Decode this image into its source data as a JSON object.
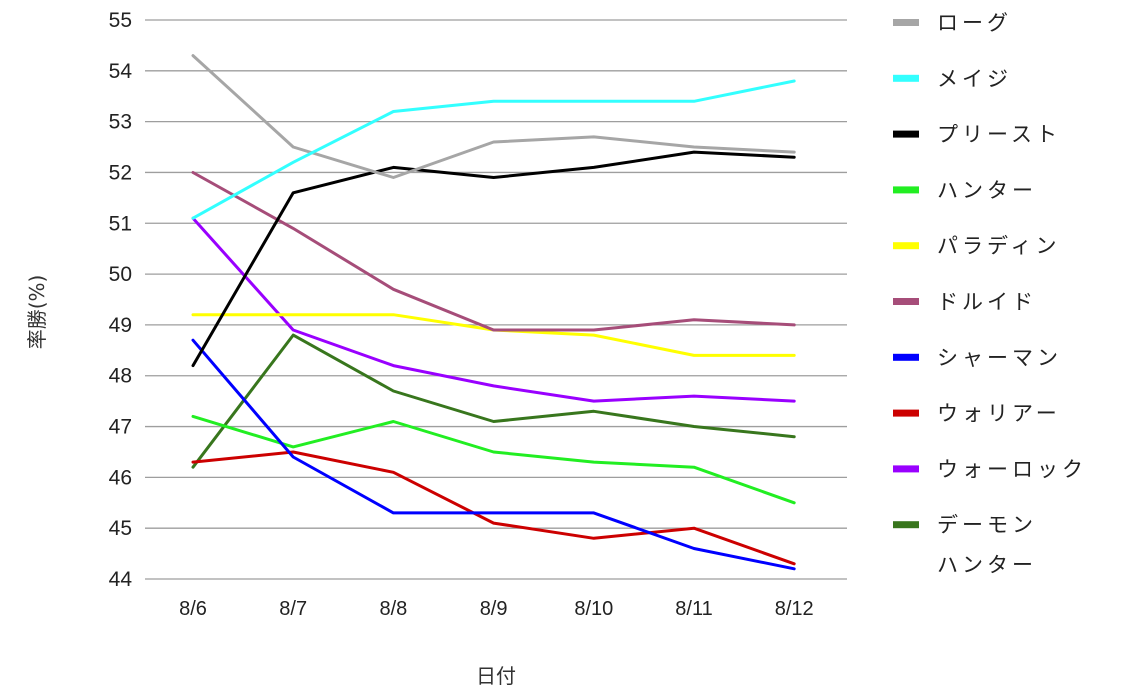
{
  "chart_data": {
    "type": "line",
    "title": "",
    "xlabel": "日付",
    "ylabel": "率勝(%)",
    "ylim": [
      44,
      55
    ],
    "yticks": [
      44,
      45,
      46,
      47,
      48,
      49,
      50,
      51,
      52,
      53,
      54,
      55
    ],
    "categories": [
      "8/6",
      "8/7",
      "8/8",
      "8/9",
      "8/10",
      "8/11",
      "8/12"
    ],
    "grid": true,
    "legend_position": "right",
    "series": [
      {
        "name": "ローグ",
        "color": "#a6a6a6",
        "values": [
          54.3,
          52.5,
          51.9,
          52.6,
          52.7,
          52.5,
          52.4
        ]
      },
      {
        "name": "メイジ",
        "color": "#33ffff",
        "values": [
          51.1,
          52.2,
          53.2,
          53.4,
          53.4,
          53.4,
          53.8
        ]
      },
      {
        "name": "プリースト",
        "color": "#000000",
        "values": [
          48.2,
          51.6,
          52.1,
          51.9,
          52.1,
          52.4,
          52.3
        ]
      },
      {
        "name": "ハンター",
        "color": "#22ee22",
        "values": [
          47.2,
          46.6,
          47.1,
          46.5,
          46.3,
          46.2,
          45.5
        ]
      },
      {
        "name": "パラディン",
        "color": "#ffff00",
        "values": [
          49.2,
          49.2,
          49.2,
          48.9,
          48.8,
          48.4,
          48.4
        ]
      },
      {
        "name": "ドルイド",
        "color": "#a64d79",
        "values": [
          52.0,
          50.9,
          49.7,
          48.9,
          48.9,
          49.1,
          49.0
        ]
      },
      {
        "name": "シャーマン",
        "color": "#0000ff",
        "values": [
          48.7,
          46.4,
          45.3,
          45.3,
          45.3,
          44.6,
          44.2
        ]
      },
      {
        "name": "ウォリアー",
        "color": "#cc0000",
        "values": [
          46.3,
          46.5,
          46.1,
          45.1,
          44.8,
          45.0,
          44.3
        ]
      },
      {
        "name": "ウォーロック",
        "color": "#9900ff",
        "values": [
          51.1,
          48.9,
          48.2,
          47.8,
          47.5,
          47.6,
          47.5
        ]
      },
      {
        "name": "デーモンハンター",
        "legend_lines": [
          "デーモン",
          "ハンター"
        ],
        "color": "#38761d",
        "values": [
          46.2,
          48.8,
          47.7,
          47.1,
          47.3,
          47.0,
          46.8
        ]
      }
    ]
  }
}
